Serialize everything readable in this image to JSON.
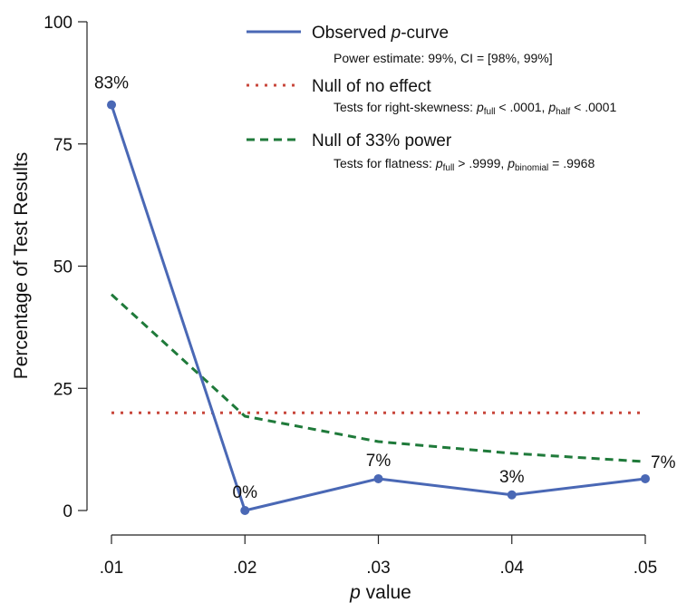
{
  "chart_data": {
    "type": "line",
    "xlabel_italic": "p",
    "xlabel_rest": " value",
    "ylabel": "Percentage of Test Results",
    "ylim": [
      0,
      100
    ],
    "yticks": [
      0,
      25,
      50,
      75,
      100
    ],
    "categories": [
      ".01",
      ".02",
      ".03",
      ".04",
      ".05"
    ],
    "series": [
      {
        "id": "observed",
        "values": [
          83,
          0,
          6.5,
          3.2,
          6.5
        ],
        "labels": [
          "83%",
          "0%",
          "7%",
          "3%",
          "7%"
        ],
        "color": "#4a68b5",
        "style": "solid",
        "markers": true
      },
      {
        "id": "null-no-effect",
        "values": [
          20,
          20,
          20,
          20,
          20
        ],
        "color": "#c8473c",
        "style": "dotted",
        "markers": false
      },
      {
        "id": "null-33-power",
        "values": [
          44.2,
          19.3,
          14.1,
          11.7,
          10.0
        ],
        "color": "#1f7a3a",
        "style": "dashed",
        "markers": false
      }
    ],
    "legend": {
      "placement": "top-right",
      "entries": [
        {
          "series": "observed",
          "label_italic": "p",
          "label_before": "Observed ",
          "label_after": "-curve",
          "note": "Power estimate: 99%, CI = [98%, 99%]"
        },
        {
          "series": "null-no-effect",
          "label": "Null of no effect",
          "note_parts": [
            "Tests for right-skewness: ",
            "p",
            "half",
            " < .0001, ",
            "p",
            "full",
            " < .0001"
          ],
          "note_text": {
            "prefix": "Tests for right-skewness: ",
            "p1": "p",
            "sub1": "full",
            "mid": " < .0001, ",
            "p2": "p",
            "sub2": "half",
            "suffix": " < .0001"
          }
        },
        {
          "series": "null-33-power",
          "label": "Null of 33% power",
          "note_text": {
            "prefix": "Tests for flatness: ",
            "p1": "p",
            "sub1": "full",
            "mid": " > .9999, ",
            "p2": "p",
            "sub2": "binomial",
            "suffix": " = .9968"
          }
        }
      ]
    }
  }
}
